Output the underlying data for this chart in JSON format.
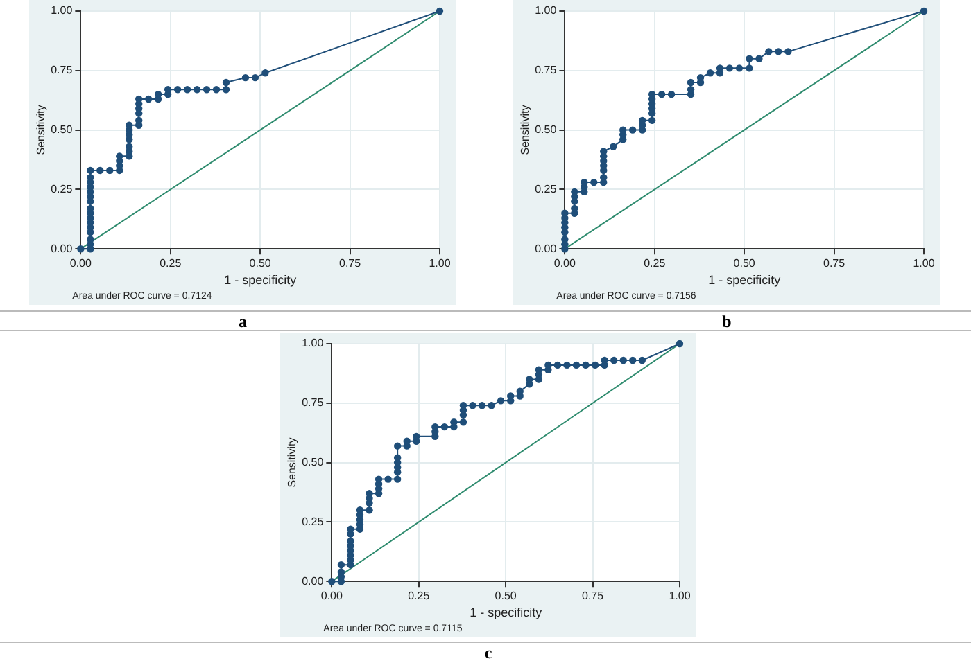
{
  "chart_data": [
    {
      "type": "line",
      "xlabel": "1 - specificity",
      "ylabel": "Sensitivity",
      "xlim": [
        0,
        1
      ],
      "ylim": [
        0,
        1
      ],
      "xticks": [
        {
          "value": 0,
          "label": "0.00"
        },
        {
          "value": 0.25,
          "label": "0.25"
        },
        {
          "value": 0.5,
          "label": "0.50"
        },
        {
          "value": 0.75,
          "label": "0.75"
        },
        {
          "value": 1,
          "label": "1.00"
        }
      ],
      "yticks": [
        {
          "value": 0,
          "label": "0.00"
        },
        {
          "value": 0.25,
          "label": "0.25"
        },
        {
          "value": 0.5,
          "label": "0.50"
        },
        {
          "value": 0.75,
          "label": "0.75"
        },
        {
          "value": 1,
          "label": "1.00"
        }
      ],
      "grid": true,
      "legend": false,
      "annotations": [
        "Area under ROC curve = 0.7124",
        "a"
      ],
      "series": [
        {
          "color": "#1f4e79",
          "marker": "circle",
          "x": [
            0,
            0.027,
            0.027,
            0.027,
            0.027,
            0.027,
            0.027,
            0.027,
            0.027,
            0.027,
            0.027,
            0.027,
            0.027,
            0.027,
            0.027,
            0.027,
            0.027,
            0.054,
            0.081,
            0.108,
            0.108,
            0.108,
            0.108,
            0.135,
            0.135,
            0.135,
            0.135,
            0.135,
            0.135,
            0.135,
            0.162,
            0.162,
            0.162,
            0.162,
            0.162,
            0.162,
            0.189,
            0.216,
            0.216,
            0.243,
            0.243,
            0.27,
            0.297,
            0.324,
            0.351,
            0.378,
            0.405,
            0.405,
            0.459,
            0.486,
            0.514,
            1
          ],
          "values": [
            0,
            0,
            0.02,
            0.04,
            0.07,
            0.09,
            0.11,
            0.13,
            0.15,
            0.17,
            0.2,
            0.22,
            0.24,
            0.26,
            0.28,
            0.3,
            0.33,
            0.33,
            0.33,
            0.33,
            0.35,
            0.37,
            0.39,
            0.39,
            0.41,
            0.43,
            0.46,
            0.48,
            0.5,
            0.52,
            0.52,
            0.54,
            0.57,
            0.59,
            0.61,
            0.63,
            0.63,
            0.63,
            0.65,
            0.65,
            0.67,
            0.67,
            0.67,
            0.67,
            0.67,
            0.67,
            0.67,
            0.7,
            0.72,
            0.72,
            0.74,
            1
          ]
        },
        {
          "color": "#2e8b6e",
          "marker": "none",
          "x": [
            0,
            1
          ],
          "values": [
            0,
            1
          ]
        }
      ]
    },
    {
      "type": "line",
      "xlabel": "1 - specificity",
      "ylabel": "Sensitivity",
      "xlim": [
        0,
        1
      ],
      "ylim": [
        0,
        1
      ],
      "xticks": [
        {
          "value": 0,
          "label": "0.00"
        },
        {
          "value": 0.25,
          "label": "0.25"
        },
        {
          "value": 0.5,
          "label": "0.50"
        },
        {
          "value": 0.75,
          "label": "0.75"
        },
        {
          "value": 1,
          "label": "1.00"
        }
      ],
      "yticks": [
        {
          "value": 0,
          "label": "0.00"
        },
        {
          "value": 0.25,
          "label": "0.25"
        },
        {
          "value": 0.5,
          "label": "0.50"
        },
        {
          "value": 0.75,
          "label": "0.75"
        },
        {
          "value": 1,
          "label": "1.00"
        }
      ],
      "grid": true,
      "legend": false,
      "annotations": [
        "Area under ROC curve = 0.7156",
        "b"
      ],
      "series": [
        {
          "color": "#1f4e79",
          "marker": "circle",
          "x": [
            0,
            0,
            0,
            0,
            0,
            0,
            0,
            0,
            0.027,
            0.027,
            0.027,
            0.027,
            0.027,
            0.054,
            0.054,
            0.054,
            0.081,
            0.108,
            0.108,
            0.108,
            0.108,
            0.108,
            0.108,
            0.108,
            0.135,
            0.162,
            0.162,
            0.162,
            0.189,
            0.216,
            0.216,
            0.216,
            0.243,
            0.243,
            0.243,
            0.243,
            0.243,
            0.243,
            0.27,
            0.297,
            0.351,
            0.351,
            0.351,
            0.378,
            0.378,
            0.405,
            0.432,
            0.432,
            0.459,
            0.486,
            0.514,
            0.514,
            0.541,
            0.568,
            0.595,
            0.622,
            1
          ],
          "values": [
            0,
            0.02,
            0.04,
            0.07,
            0.09,
            0.11,
            0.13,
            0.15,
            0.15,
            0.17,
            0.2,
            0.22,
            0.24,
            0.24,
            0.26,
            0.28,
            0.28,
            0.28,
            0.3,
            0.33,
            0.35,
            0.37,
            0.39,
            0.41,
            0.43,
            0.46,
            0.48,
            0.5,
            0.5,
            0.5,
            0.52,
            0.54,
            0.54,
            0.57,
            0.59,
            0.61,
            0.63,
            0.65,
            0.65,
            0.65,
            0.65,
            0.67,
            0.7,
            0.7,
            0.72,
            0.74,
            0.74,
            0.76,
            0.76,
            0.76,
            0.76,
            0.8,
            0.8,
            0.83,
            0.83,
            0.83,
            1
          ]
        },
        {
          "color": "#2e8b6e",
          "marker": "none",
          "x": [
            0,
            1
          ],
          "values": [
            0,
            1
          ]
        }
      ]
    },
    {
      "type": "line",
      "xlabel": "1 - specificity",
      "ylabel": "Sensitivity",
      "xlim": [
        0,
        1
      ],
      "ylim": [
        0,
        1
      ],
      "xticks": [
        {
          "value": 0,
          "label": "0.00"
        },
        {
          "value": 0.25,
          "label": "0.25"
        },
        {
          "value": 0.5,
          "label": "0.50"
        },
        {
          "value": 0.75,
          "label": "0.75"
        },
        {
          "value": 1,
          "label": "1.00"
        }
      ],
      "yticks": [
        {
          "value": 0,
          "label": "0.00"
        },
        {
          "value": 0.25,
          "label": "0.25"
        },
        {
          "value": 0.5,
          "label": "0.50"
        },
        {
          "value": 0.75,
          "label": "0.75"
        },
        {
          "value": 1,
          "label": "1.00"
        }
      ],
      "grid": true,
      "legend": false,
      "annotations": [
        "Area under ROC curve = 0.7115",
        "c"
      ],
      "series": [
        {
          "color": "#1f4e79",
          "marker": "circle",
          "x": [
            0,
            0.027,
            0.027,
            0.027,
            0.027,
            0.054,
            0.054,
            0.054,
            0.054,
            0.054,
            0.054,
            0.054,
            0.054,
            0.081,
            0.081,
            0.081,
            0.081,
            0.081,
            0.108,
            0.108,
            0.108,
            0.108,
            0.135,
            0.135,
            0.135,
            0.135,
            0.162,
            0.189,
            0.189,
            0.189,
            0.189,
            0.189,
            0.189,
            0.216,
            0.216,
            0.243,
            0.243,
            0.297,
            0.297,
            0.297,
            0.324,
            0.351,
            0.351,
            0.378,
            0.378,
            0.378,
            0.378,
            0.405,
            0.432,
            0.459,
            0.486,
            0.514,
            0.514,
            0.541,
            0.541,
            0.568,
            0.568,
            0.595,
            0.595,
            0.595,
            0.622,
            0.622,
            0.649,
            0.676,
            0.703,
            0.73,
            0.757,
            0.784,
            0.784,
            0.811,
            0.838,
            0.865,
            0.892,
            1
          ],
          "values": [
            0,
            0,
            0.02,
            0.04,
            0.07,
            0.07,
            0.09,
            0.11,
            0.13,
            0.15,
            0.17,
            0.2,
            0.22,
            0.22,
            0.24,
            0.26,
            0.28,
            0.3,
            0.3,
            0.33,
            0.35,
            0.37,
            0.37,
            0.39,
            0.41,
            0.43,
            0.43,
            0.43,
            0.46,
            0.48,
            0.5,
            0.52,
            0.57,
            0.57,
            0.59,
            0.59,
            0.61,
            0.61,
            0.63,
            0.65,
            0.65,
            0.65,
            0.67,
            0.67,
            0.7,
            0.72,
            0.74,
            0.74,
            0.74,
            0.74,
            0.76,
            0.76,
            0.78,
            0.78,
            0.8,
            0.83,
            0.85,
            0.85,
            0.87,
            0.89,
            0.89,
            0.91,
            0.91,
            0.91,
            0.91,
            0.91,
            0.91,
            0.91,
            0.93,
            0.93,
            0.93,
            0.93,
            0.93,
            1
          ]
        },
        {
          "color": "#2e8b6e",
          "marker": "none",
          "x": [
            0,
            1
          ],
          "values": [
            0,
            1
          ]
        }
      ]
    }
  ]
}
